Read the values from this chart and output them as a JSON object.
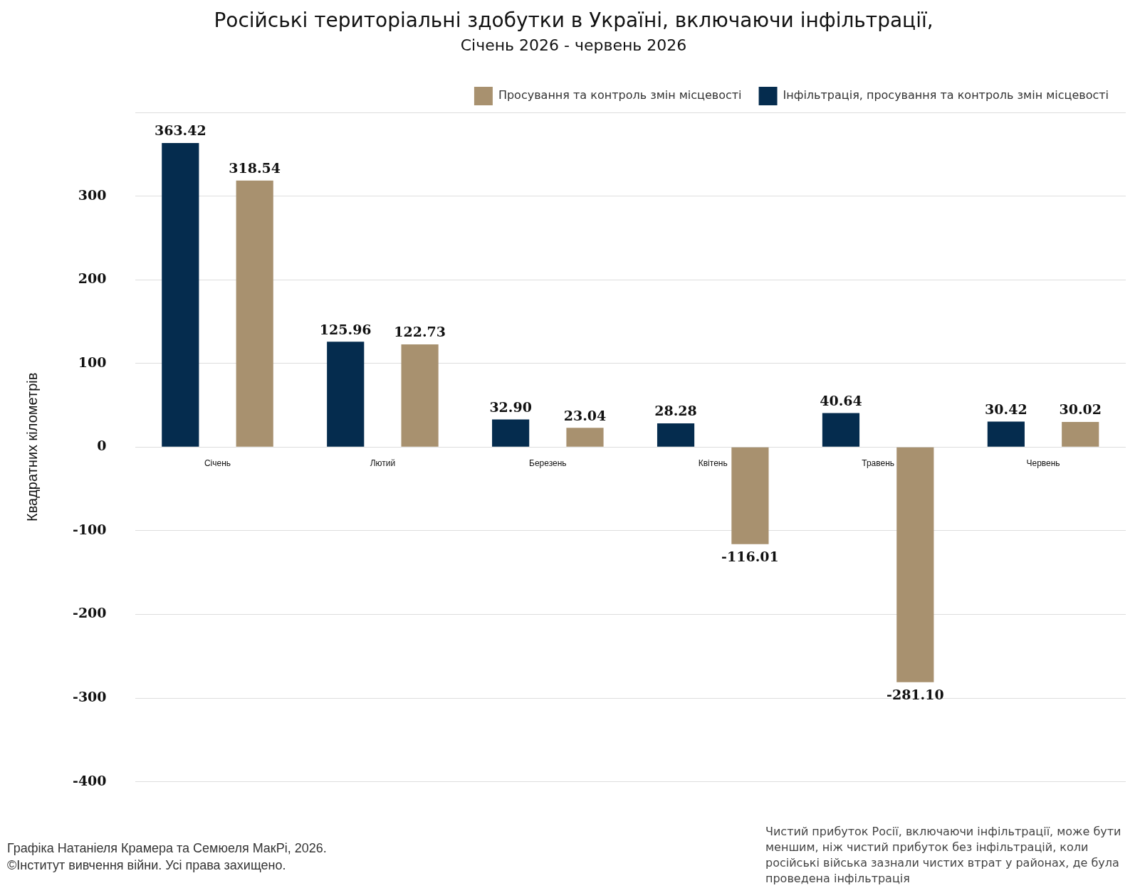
{
  "chart_data": {
    "type": "bar",
    "title": "Російські територіальні здобутки в Україні, включаючи інфільтрації,",
    "subtitle": "Січень 2026 - червень 2026",
    "ylabel": "Квадратних кілометрів",
    "categories": [
      "Січень",
      "Лютий",
      "Березень",
      "Квітень",
      "Травень",
      "Червень"
    ],
    "series": [
      {
        "name": "Інфільтрація, просування та контроль змін місцевості",
        "color": "#052c4e",
        "values": [
          363.42,
          125.96,
          32.9,
          28.28,
          40.64,
          30.42
        ],
        "value_labels": [
          "363.42",
          "125.96",
          "32.90",
          "28.28",
          "40.64",
          "30.42"
        ]
      },
      {
        "name": "Просування та контроль змін місцевості",
        "color": "#a8916f",
        "values": [
          318.54,
          122.73,
          23.04,
          -116.01,
          -281.1,
          30.02
        ],
        "value_labels": [
          "318.54",
          "122.73",
          "23.04",
          "-116.01",
          "-281.10",
          "30.02"
        ]
      }
    ],
    "ylim": [
      -400,
      400
    ],
    "yticks": [
      -400,
      -300,
      -200,
      -100,
      0,
      100,
      200,
      300,
      {
        "value": 400,
        "label": null
      }
    ],
    "grid": "y",
    "legend": "top right",
    "annotations": [
      "Графіка Натаніеля Крамера та Семюеля МакРі, 2026.",
      "©Інститут вивчення війни. Усі права захищено.",
      "Чистий прибуток Росії, включаючи інфільтрації, може бути меншим, ніж чистий прибуток без інфільтрацій, коли російські війська зазнали чистих втрат у районах, де була проведена інфільтрація"
    ]
  }
}
